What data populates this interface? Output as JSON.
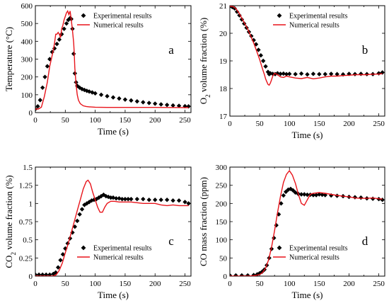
{
  "chart_data": [
    {
      "id": "a",
      "type": "line",
      "panel_label": "a",
      "xlabel": "Time (s)",
      "ylabel_text": "Temperature (°C)",
      "ylabel_sub": "",
      "ylabel_tail": "",
      "xlim": [
        0,
        260
      ],
      "ylim": [
        0,
        600
      ],
      "xticks": [
        0,
        50,
        100,
        150,
        200,
        250
      ],
      "yticks": [
        0,
        100,
        200,
        300,
        400,
        500,
        600
      ],
      "ytick_labels": [
        "0",
        "100",
        "200",
        "300",
        "400",
        "500",
        "600"
      ],
      "legend_position": "top-right",
      "series": [
        {
          "name": "Experimental results",
          "style": "diamond-markers",
          "color": "#000000",
          "x": [
            0,
            4,
            8,
            12,
            16,
            20,
            24,
            28,
            32,
            36,
            40,
            44,
            48,
            52,
            55,
            58,
            60,
            62,
            64,
            66,
            68,
            70,
            74,
            78,
            82,
            86,
            90,
            95,
            100,
            110,
            120,
            130,
            140,
            150,
            160,
            170,
            180,
            190,
            200,
            210,
            220,
            230,
            240,
            250,
            256
          ],
          "y": [
            20,
            35,
            70,
            140,
            200,
            260,
            300,
            340,
            360,
            385,
            410,
            440,
            470,
            500,
            520,
            530,
            525,
            470,
            330,
            220,
            170,
            150,
            140,
            132,
            127,
            122,
            118,
            113,
            108,
            100,
            92,
            85,
            79,
            73,
            68,
            63,
            58,
            54,
            50,
            46,
            43,
            40,
            38,
            36,
            35
          ]
        },
        {
          "name": "Numerical results",
          "style": "line",
          "color": "#e8141b",
          "x": [
            0,
            5,
            10,
            15,
            20,
            24,
            28,
            30,
            32,
            34,
            36,
            38,
            40,
            42,
            44,
            46,
            48,
            50,
            52,
            54,
            56,
            58,
            60,
            62,
            64,
            65,
            66,
            68,
            70,
            72,
            75,
            80,
            85,
            90,
            100,
            120,
            150,
            200,
            256
          ],
          "y": [
            20,
            20,
            30,
            90,
            170,
            260,
            320,
            350,
            390,
            440,
            440,
            450,
            440,
            420,
            470,
            490,
            520,
            540,
            560,
            570,
            550,
            570,
            520,
            460,
            390,
            330,
            250,
            160,
            100,
            70,
            50,
            38,
            34,
            32,
            30,
            29,
            29,
            29,
            28
          ]
        }
      ]
    },
    {
      "id": "b",
      "type": "line",
      "panel_label": "b",
      "xlabel": "Time (s)",
      "ylabel_text": "O",
      "ylabel_sub": "2",
      "ylabel_tail": " volume fraction (%)",
      "xlim": [
        0,
        260
      ],
      "ylim": [
        17,
        21
      ],
      "xticks": [
        0,
        50,
        100,
        150,
        200,
        250
      ],
      "yticks": [
        17,
        18,
        19,
        20,
        21
      ],
      "ytick_labels": [
        "17",
        "18",
        "19",
        "20",
        "21"
      ],
      "legend_position": "top-right",
      "series": [
        {
          "name": "Experimental results",
          "style": "diamond-markers",
          "color": "#000000",
          "x": [
            0,
            4,
            8,
            12,
            16,
            20,
            24,
            28,
            32,
            36,
            40,
            44,
            48,
            52,
            56,
            60,
            64,
            66,
            68,
            72,
            76,
            80,
            85,
            90,
            95,
            100,
            110,
            120,
            130,
            140,
            150,
            160,
            170,
            180,
            190,
            200,
            210,
            220,
            230,
            240,
            250,
            256
          ],
          "y": [
            20.98,
            20.95,
            20.9,
            20.78,
            20.65,
            20.5,
            20.35,
            20.2,
            20.05,
            19.9,
            19.75,
            19.6,
            19.4,
            19.2,
            19.0,
            18.8,
            18.6,
            18.52,
            18.55,
            18.53,
            18.52,
            18.55,
            18.53,
            18.54,
            18.52,
            18.53,
            18.52,
            18.54,
            18.51,
            18.53,
            18.52,
            18.52,
            18.53,
            18.52,
            18.51,
            18.53,
            18.52,
            18.53,
            18.52,
            18.52,
            18.55,
            18.58
          ]
        },
        {
          "name": "Numerical results",
          "style": "line",
          "color": "#e8141b",
          "x": [
            0,
            5,
            10,
            15,
            20,
            25,
            30,
            35,
            40,
            45,
            50,
            55,
            58,
            60,
            62,
            64,
            66,
            68,
            70,
            72,
            75,
            80,
            85,
            90,
            95,
            100,
            110,
            120,
            130,
            140,
            150,
            160,
            170,
            180,
            190,
            200,
            210,
            220,
            230,
            240,
            250,
            256
          ],
          "y": [
            20.98,
            20.97,
            20.9,
            20.75,
            20.55,
            20.35,
            20.15,
            19.9,
            19.65,
            19.35,
            19.05,
            18.7,
            18.5,
            18.35,
            18.25,
            18.15,
            18.12,
            18.2,
            18.32,
            18.45,
            18.55,
            18.5,
            18.42,
            18.4,
            18.45,
            18.42,
            18.38,
            18.36,
            18.4,
            18.35,
            18.38,
            18.42,
            18.45,
            18.45,
            18.47,
            18.48,
            18.5,
            18.5,
            18.5,
            18.52,
            18.52,
            18.54
          ]
        }
      ]
    },
    {
      "id": "c",
      "type": "line",
      "panel_label": "c",
      "xlabel": "Time (s)",
      "ylabel_text": "CO",
      "ylabel_sub": "2",
      "ylabel_tail": " volume fraction (%)",
      "xlim": [
        0,
        260
      ],
      "ylim": [
        0,
        1.5
      ],
      "xticks": [
        0,
        50,
        100,
        150,
        200,
        250
      ],
      "yticks": [
        0,
        0.25,
        0.5,
        0.75,
        1,
        1.25,
        1.5
      ],
      "ytick_labels": [
        "0",
        "0.25",
        "0.5",
        "0.75",
        "1",
        "1.25",
        "1.5"
      ],
      "legend_position": "bottom-right",
      "series": [
        {
          "name": "Experimental results",
          "style": "diamond-markers",
          "color": "#000000",
          "x": [
            0,
            6,
            12,
            18,
            24,
            30,
            34,
            38,
            42,
            46,
            50,
            54,
            58,
            62,
            66,
            70,
            74,
            78,
            82,
            86,
            90,
            94,
            98,
            102,
            106,
            110,
            114,
            118,
            122,
            126,
            130,
            135,
            140,
            145,
            150,
            155,
            160,
            170,
            180,
            190,
            200,
            210,
            220,
            230,
            240,
            250,
            256
          ],
          "y": [
            0.02,
            0.02,
            0.02,
            0.02,
            0.02,
            0.03,
            0.05,
            0.12,
            0.22,
            0.3,
            0.38,
            0.45,
            0.52,
            0.6,
            0.68,
            0.76,
            0.85,
            0.92,
            0.98,
            1.0,
            1.02,
            1.04,
            1.05,
            1.06,
            1.08,
            1.1,
            1.12,
            1.1,
            1.09,
            1.08,
            1.08,
            1.07,
            1.07,
            1.06,
            1.06,
            1.06,
            1.06,
            1.06,
            1.06,
            1.05,
            1.05,
            1.05,
            1.05,
            1.04,
            1.04,
            1.02,
            1.0
          ]
        },
        {
          "name": "Numerical results",
          "style": "line",
          "color": "#e8141b",
          "x": [
            0,
            20,
            30,
            35,
            40,
            45,
            50,
            55,
            60,
            65,
            70,
            75,
            80,
            85,
            88,
            92,
            96,
            100,
            104,
            108,
            112,
            116,
            120,
            126,
            132,
            140,
            150,
            160,
            170,
            180,
            190,
            200,
            210,
            220,
            230,
            240,
            250,
            256
          ],
          "y": [
            0,
            0,
            0,
            0.02,
            0.08,
            0.18,
            0.32,
            0.45,
            0.6,
            0.75,
            0.9,
            1.05,
            1.2,
            1.3,
            1.32,
            1.27,
            1.15,
            1.05,
            0.95,
            0.88,
            0.88,
            0.95,
            1.0,
            1.03,
            1.03,
            1.02,
            1.02,
            1.02,
            1.01,
            1.0,
            1.0,
            1.0,
            0.98,
            0.97,
            0.98,
            0.97,
            0.97,
            0.97
          ]
        }
      ]
    },
    {
      "id": "d",
      "type": "line",
      "panel_label": "d",
      "xlabel": "Time (s)",
      "ylabel_text": "CO mass fraction (ppm)",
      "ylabel_sub": "",
      "ylabel_tail": "",
      "xlim": [
        0,
        260
      ],
      "ylim": [
        0,
        300
      ],
      "xticks": [
        0,
        50,
        100,
        150,
        200,
        250
      ],
      "yticks": [
        0,
        50,
        100,
        150,
        200,
        250,
        300
      ],
      "ytick_labels": [
        "0",
        "50",
        "100",
        "150",
        "200",
        "250",
        "300"
      ],
      "legend_position": "bottom-right",
      "series": [
        {
          "name": "Experimental results",
          "style": "diamond-markers",
          "color": "#000000",
          "x": [
            0,
            10,
            20,
            30,
            40,
            46,
            50,
            54,
            58,
            62,
            66,
            70,
            74,
            78,
            82,
            86,
            90,
            94,
            98,
            102,
            106,
            110,
            115,
            120,
            125,
            130,
            135,
            140,
            145,
            150,
            155,
            160,
            170,
            180,
            190,
            200,
            210,
            220,
            230,
            240,
            250,
            256
          ],
          "y": [
            2,
            2,
            2,
            2,
            3,
            5,
            8,
            12,
            18,
            30,
            50,
            75,
            105,
            140,
            170,
            200,
            222,
            232,
            238,
            240,
            236,
            230,
            226,
            225,
            225,
            224,
            224,
            223,
            223,
            225,
            224,
            223,
            222,
            221,
            220,
            218,
            217,
            216,
            214,
            213,
            212,
            210
          ]
        },
        {
          "name": "Numerical results",
          "style": "line",
          "color": "#e8141b",
          "x": [
            0,
            30,
            40,
            50,
            55,
            60,
            65,
            70,
            75,
            80,
            85,
            90,
            95,
            100,
            105,
            110,
            115,
            120,
            125,
            130,
            135,
            140,
            150,
            160,
            170,
            180,
            190,
            200,
            210,
            220,
            230,
            240,
            250,
            256
          ],
          "y": [
            0,
            0,
            1,
            4,
            10,
            22,
            45,
            80,
            125,
            175,
            220,
            258,
            280,
            290,
            278,
            255,
            225,
            200,
            195,
            210,
            225,
            228,
            230,
            228,
            225,
            222,
            220,
            218,
            215,
            214,
            214,
            215,
            213,
            212
          ]
        }
      ]
    }
  ],
  "legend_labels": [
    "Experimental results",
    "Numerical results"
  ]
}
